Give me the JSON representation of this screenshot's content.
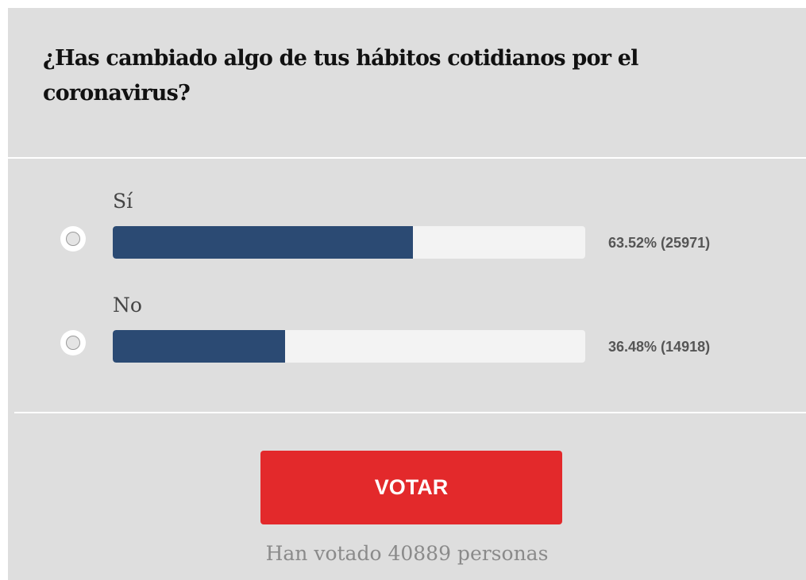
{
  "poll": {
    "question": "¿Has cambiado algo de tus hábitos cotidianos por el coronavirus?",
    "options": [
      {
        "label": "Sí",
        "percent": 63.52,
        "result_text": "63.52% (25971)",
        "votes": 25971
      },
      {
        "label": "No",
        "percent": 36.48,
        "result_text": "36.48% (14918)",
        "votes": 14918
      }
    ],
    "vote_button_label": "VOTAR",
    "total_votes_text": "Han votado 40889 personas"
  },
  "colors": {
    "background": "#dedede",
    "bar_fill": "#2b4a73",
    "bar_track": "#f3f3f3",
    "button": "#e3292b"
  }
}
